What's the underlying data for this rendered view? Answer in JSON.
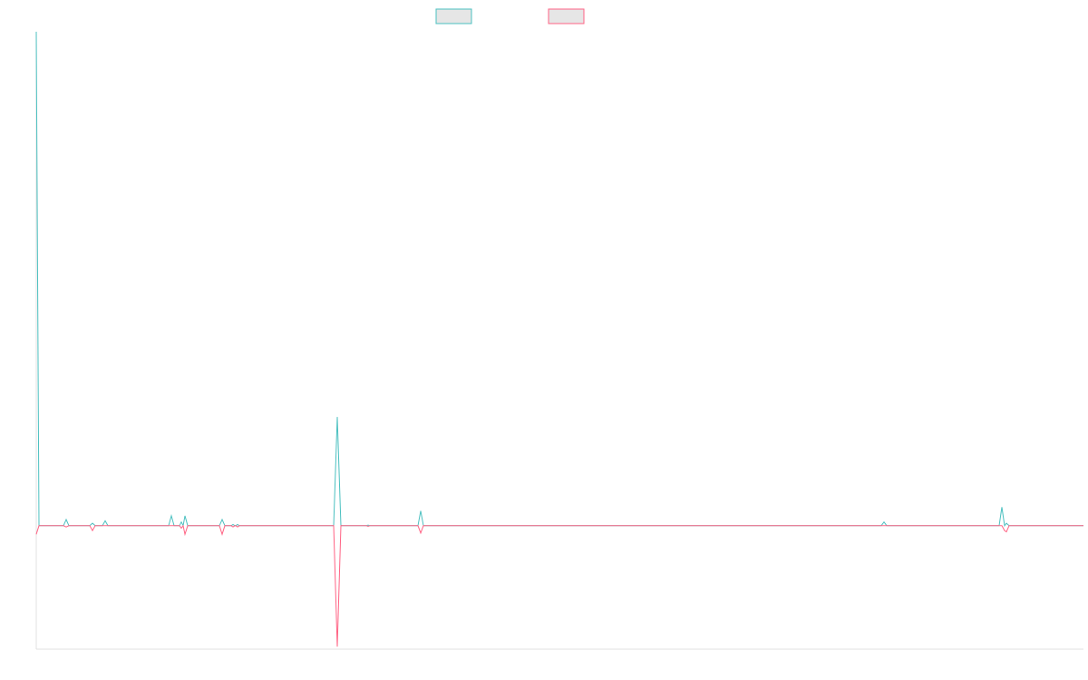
{
  "chart_data": {
    "type": "line",
    "x": [
      0,
      3,
      30,
      33,
      36,
      59,
      62,
      65,
      73,
      76,
      79,
      146,
      149,
      152,
      158,
      160,
      162,
      164,
      167,
      202,
      205,
      208,
      215,
      217,
      219,
      220,
      222,
      224,
      328,
      332,
      336,
      364,
      366,
      368,
      421,
      424,
      427,
      932,
      935,
      938,
      1062,
      1065,
      1068,
      1070,
      1073,
      1155
    ],
    "xlim": [
      0,
      1155
    ],
    "ylim": [
      -100,
      400
    ],
    "series": [
      {
        "color": "#4bc0c0",
        "values": [
          400,
          0,
          0,
          5,
          0,
          0,
          2,
          0,
          0,
          4,
          0,
          0,
          8,
          0,
          0,
          3,
          0,
          8,
          0,
          0,
          5,
          0,
          0,
          1,
          0,
          0,
          1,
          0,
          0,
          88,
          0,
          0,
          0.5,
          0,
          0,
          12,
          0,
          0,
          3,
          0,
          0,
          15,
          0,
          2,
          0,
          0
        ]
      },
      {
        "color": "#ff6384",
        "values": [
          -7,
          0,
          0,
          -1,
          0,
          0,
          -4,
          0,
          0,
          0,
          0,
          0,
          0,
          0,
          0,
          -2,
          0,
          -7,
          0,
          0,
          -7,
          0,
          0,
          -1,
          0,
          0,
          -1,
          0,
          0,
          -98,
          0,
          0,
          -0.5,
          0,
          0,
          -6,
          0,
          0,
          0,
          0,
          0,
          0,
          -4,
          -5,
          0,
          0
        ]
      }
    ]
  }
}
